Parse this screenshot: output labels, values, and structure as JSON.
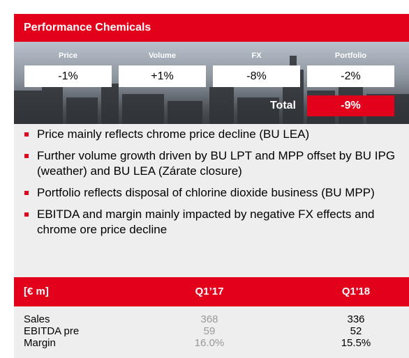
{
  "header": {
    "title": "Performance Chemicals"
  },
  "drivers": {
    "labels": [
      "Price",
      "Volume",
      "FX",
      "Portfolio"
    ],
    "values": [
      "-1%",
      "+1%",
      "-8%",
      "-2%"
    ],
    "total_label": "Total",
    "total_value": "-9%"
  },
  "bullets": [
    "Price mainly reflects chrome price decline (BU LEA)",
    "Further volume growth driven by BU LPT and MPP offset by BU IPG (weather) and BU LEA (Zárate closure)",
    "Portfolio reflects disposal of chlorine dioxide business (BU MPP)",
    "EBITDA and margin mainly impacted by negative FX effects and chrome ore price decline"
  ],
  "table": {
    "header": [
      "[€ m]",
      "Q1’17",
      "Q1'18"
    ],
    "rows": [
      [
        "Sales",
        "368",
        "336"
      ],
      [
        "EBITDA pre",
        "59",
        "52"
      ],
      [
        "Margin",
        "16.0%",
        "15.5%"
      ]
    ]
  }
}
